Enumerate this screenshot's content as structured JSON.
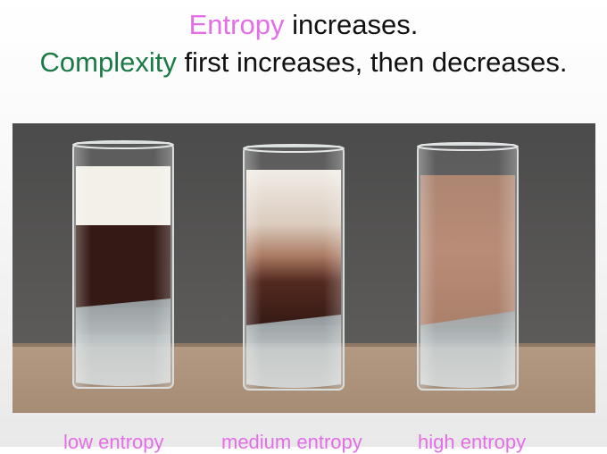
{
  "headline": {
    "line1_keyword": "Entropy",
    "line1_rest": " increases.",
    "line2_keyword": "Complexity",
    "line2_rest": " first increases, then decreases."
  },
  "captions": {
    "low": "low entropy",
    "medium": "medium entropy",
    "high": "high entropy"
  },
  "colors": {
    "keyword_entropy": "#e36ee6",
    "keyword_complexity": "#1a7a45",
    "caption": "#e36ee6",
    "coffee": "#2a0d08",
    "cream": "#f2efe7",
    "mixed": "#b58670"
  }
}
